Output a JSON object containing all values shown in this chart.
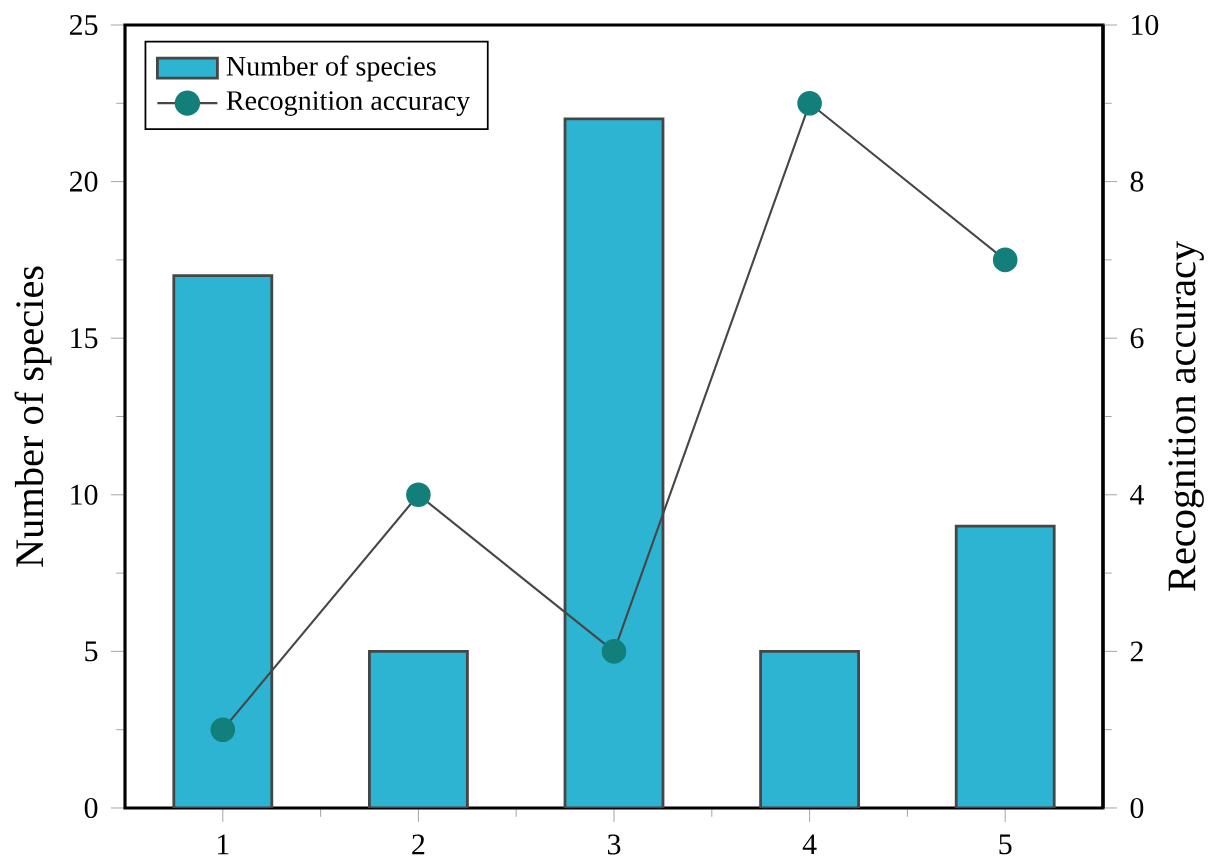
{
  "chart_data": {
    "type": "bar",
    "categories": [
      "1",
      "2",
      "3",
      "4",
      "5"
    ],
    "ylabel": "Number of species",
    "y2label": "Recognition accuracy",
    "ylim": [
      0,
      25
    ],
    "yticks": [
      0,
      5,
      10,
      15,
      20,
      25
    ],
    "y2lim": [
      0,
      10
    ],
    "y2ticks": [
      0,
      2,
      4,
      6,
      8,
      10
    ],
    "legend": "top left",
    "series": [
      {
        "name": "Number of species",
        "color": "#2db4d2",
        "values": [
          17,
          5,
          22,
          5,
          9
        ]
      },
      {
        "name": "Recognition accuracy",
        "type": "line",
        "axis": "y2",
        "marker": "circle",
        "color": "#137f7a",
        "values": [
          1,
          4,
          2,
          9,
          7
        ]
      }
    ]
  }
}
